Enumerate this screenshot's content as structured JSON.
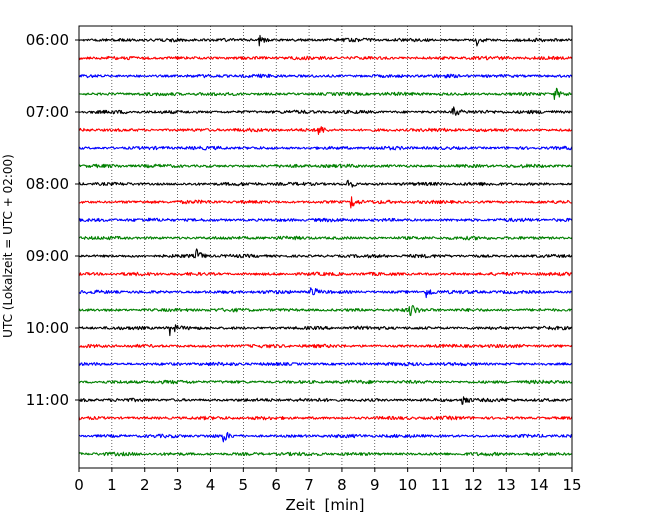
{
  "chart_data": {
    "type": "line",
    "title": "",
    "xlabel": "Zeit  [min]",
    "ylabel": "UTC (Lokalzeit = UTC + 02:00)",
    "xlim": [
      0,
      15
    ],
    "x_ticks": [
      0,
      1,
      2,
      3,
      4,
      5,
      6,
      7,
      8,
      9,
      10,
      11,
      12,
      13,
      14,
      15
    ],
    "grid": true,
    "colors": [
      "#000000",
      "#ff0000",
      "#0000ff",
      "#008000"
    ],
    "traces": [
      {
        "start": "06:00",
        "color": "#000000",
        "events": [
          5.5,
          12.1
        ]
      },
      {
        "start": "06:15",
        "color": "#ff0000",
        "events": []
      },
      {
        "start": "06:30",
        "color": "#0000ff",
        "events": []
      },
      {
        "start": "06:45",
        "color": "#008000",
        "events": [
          14.5
        ]
      },
      {
        "start": "07:00",
        "color": "#000000",
        "events": [
          11.4
        ]
      },
      {
        "start": "07:15",
        "color": "#ff0000",
        "events": [
          7.3
        ]
      },
      {
        "start": "07:30",
        "color": "#0000ff",
        "events": []
      },
      {
        "start": "07:45",
        "color": "#008000",
        "events": []
      },
      {
        "start": "08:00",
        "color": "#000000",
        "events": [
          8.2
        ]
      },
      {
        "start": "08:15",
        "color": "#ff0000",
        "events": [
          8.3
        ]
      },
      {
        "start": "08:30",
        "color": "#0000ff",
        "events": []
      },
      {
        "start": "08:45",
        "color": "#008000",
        "events": []
      },
      {
        "start": "09:00",
        "color": "#000000",
        "events": [
          3.6
        ]
      },
      {
        "start": "09:15",
        "color": "#ff0000",
        "events": []
      },
      {
        "start": "09:30",
        "color": "#0000ff",
        "events": [
          7.1,
          10.6
        ]
      },
      {
        "start": "09:45",
        "color": "#008000",
        "events": [
          10.1
        ]
      },
      {
        "start": "10:00",
        "color": "#000000",
        "events": [
          2.8
        ]
      },
      {
        "start": "10:15",
        "color": "#ff0000",
        "events": []
      },
      {
        "start": "10:30",
        "color": "#0000ff",
        "events": []
      },
      {
        "start": "10:45",
        "color": "#008000",
        "events": []
      },
      {
        "start": "11:00",
        "color": "#000000",
        "events": [
          11.7
        ]
      },
      {
        "start": "11:15",
        "color": "#ff0000",
        "events": []
      },
      {
        "start": "11:30",
        "color": "#0000ff",
        "events": [
          4.4
        ]
      },
      {
        "start": "11:45",
        "color": "#008000",
        "events": []
      }
    ],
    "y_tick_labels": [
      "06:00",
      "07:00",
      "08:00",
      "09:00",
      "10:00",
      "11:00"
    ]
  }
}
